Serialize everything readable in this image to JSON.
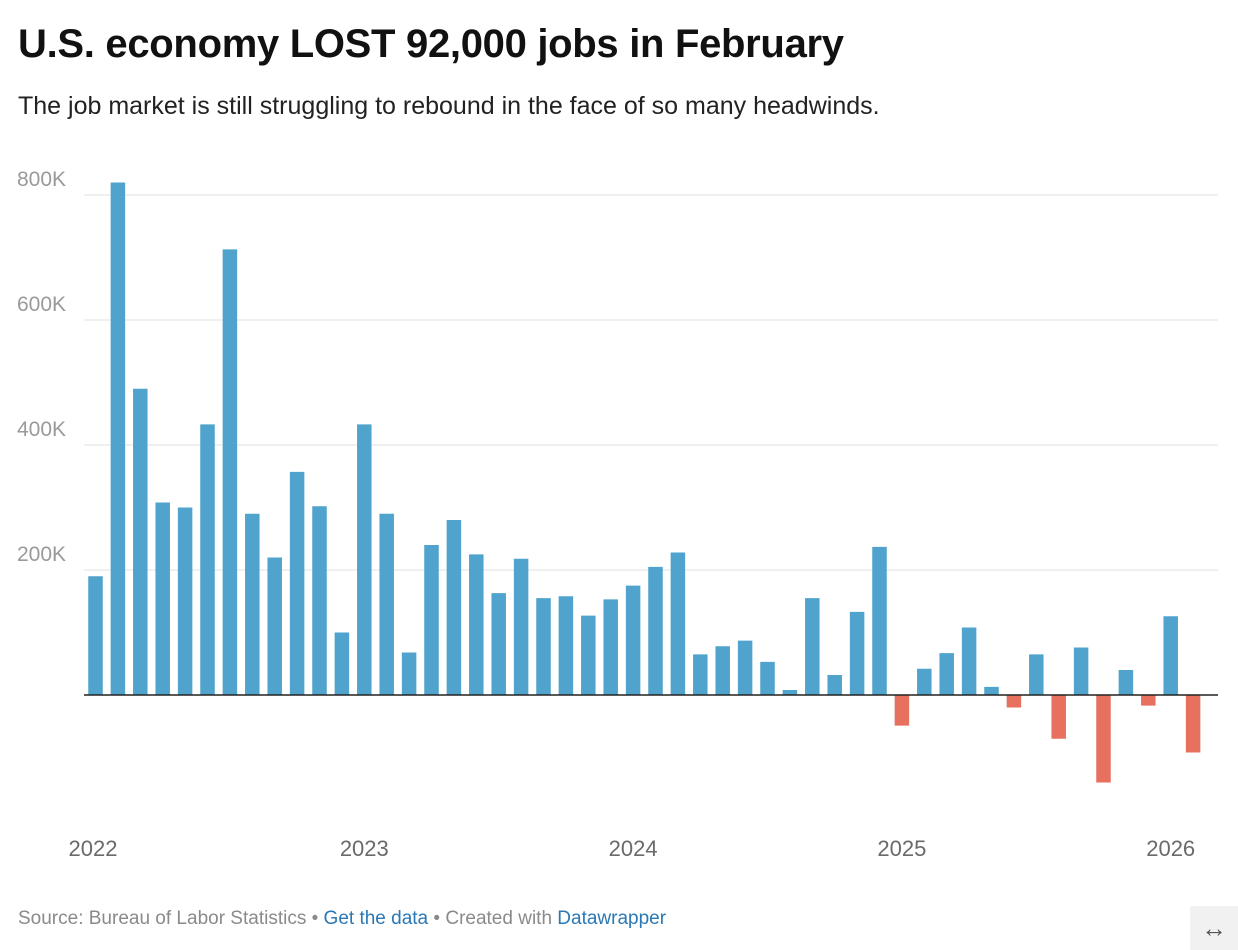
{
  "header": {
    "title": "U.S. economy LOST 92,000 jobs in February",
    "subtitle": "The job market is still struggling to rebound in the face of so many headwinds."
  },
  "footer": {
    "source": "Source: Bureau of Labor Statistics",
    "sep1": " • ",
    "get_data": "Get the data",
    "sep2": " • ",
    "created": "Created with ",
    "tool": "Datawrapper"
  },
  "expand_icon": "↔",
  "colors": {
    "positive": "#4fa3cc",
    "negative": "#e8705e",
    "grid": "#e1e1e1",
    "zero": "#222222"
  },
  "chart_data": {
    "type": "bar",
    "ylim": [
      -150000,
      830000
    ],
    "yticks": [
      200000,
      400000,
      600000,
      800000
    ],
    "ytick_labels": [
      "200K",
      "400K",
      "600K",
      "800K"
    ],
    "xtick_labels": [
      "2022",
      "2023",
      "2024",
      "2025",
      "2026"
    ],
    "xtick_index": [
      0,
      12,
      24,
      36,
      48
    ],
    "grid": true,
    "values": [
      190000,
      820000,
      490000,
      308000,
      300000,
      433000,
      713000,
      290000,
      220000,
      357000,
      302000,
      100000,
      433000,
      290000,
      68000,
      240000,
      280000,
      225000,
      163000,
      218000,
      155000,
      158000,
      127000,
      153000,
      175000,
      205000,
      228000,
      65000,
      78000,
      87000,
      53000,
      8000,
      155000,
      32000,
      133000,
      237000,
      -49000,
      42000,
      67000,
      108000,
      13000,
      -20000,
      65000,
      -70000,
      76000,
      -140000,
      40000,
      -17000,
      126000,
      -92000
    ]
  }
}
